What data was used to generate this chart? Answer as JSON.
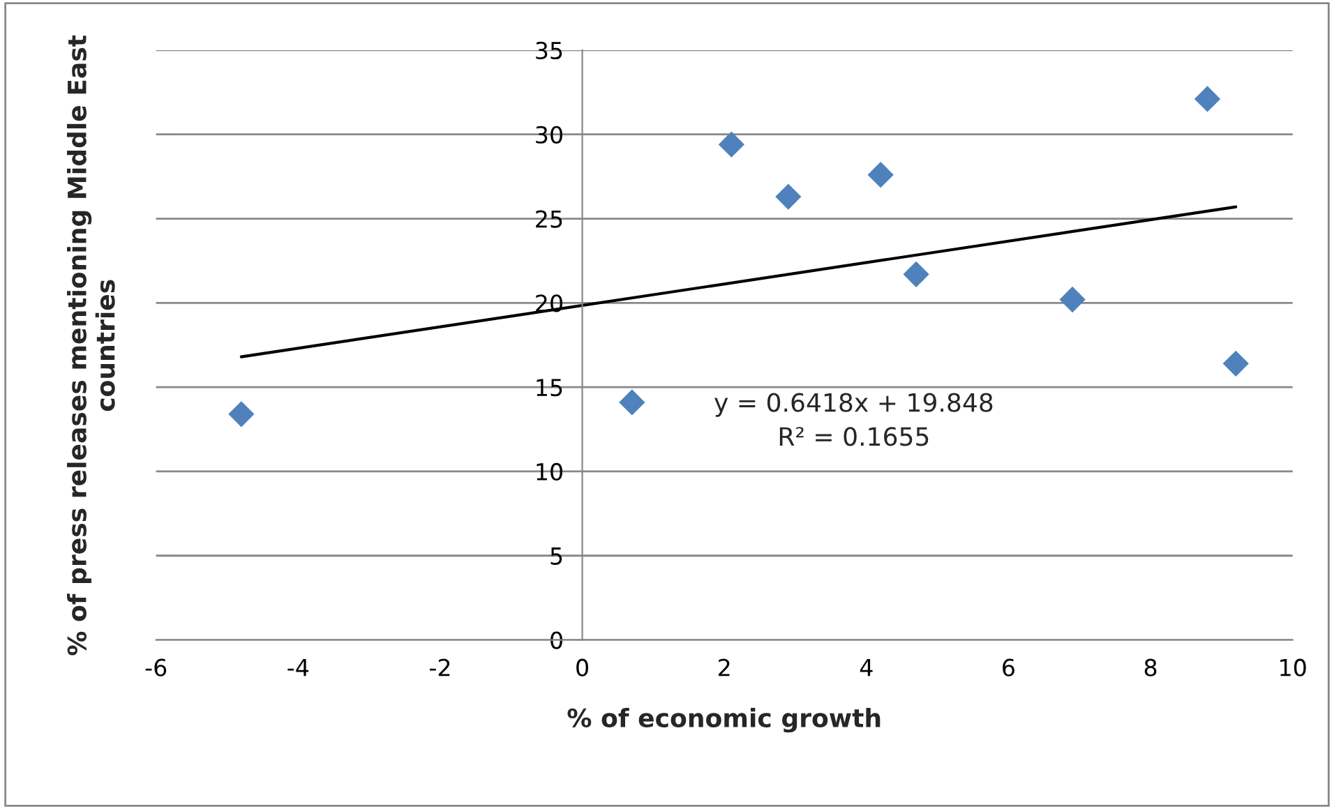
{
  "chart_data": {
    "type": "scatter",
    "xlabel": "% of economic growth",
    "ylabel": "% of press releases mentioning Middle East countries",
    "series": [
      {
        "color": "#4f81bd",
        "marker": "diamond",
        "x": [
          -4.8,
          0.7,
          2.1,
          2.9,
          4.2,
          4.7,
          6.9,
          8.8,
          9.2
        ],
        "values": [
          13.4,
          14.1,
          29.4,
          26.3,
          27.6,
          21.7,
          20.2,
          32.1,
          16.4
        ]
      },
      {
        "type": "line",
        "color": "#000000",
        "marker": "none",
        "line_style": "solid",
        "x": [
          -4.8,
          9.2
        ],
        "values": [
          16.8,
          25.7
        ]
      }
    ],
    "annotations": [
      "y = 0.6418x + 19.848",
      "R² = 0.1655"
    ],
    "xlim": [
      -6,
      10
    ],
    "xticks": [
      -6,
      -4,
      -2,
      0,
      2,
      4,
      6,
      8,
      10
    ],
    "ylim": [
      0,
      35
    ],
    "yticks": [
      0,
      5,
      10,
      15,
      20,
      25,
      30,
      35
    ],
    "grid": "y",
    "legend": false
  }
}
